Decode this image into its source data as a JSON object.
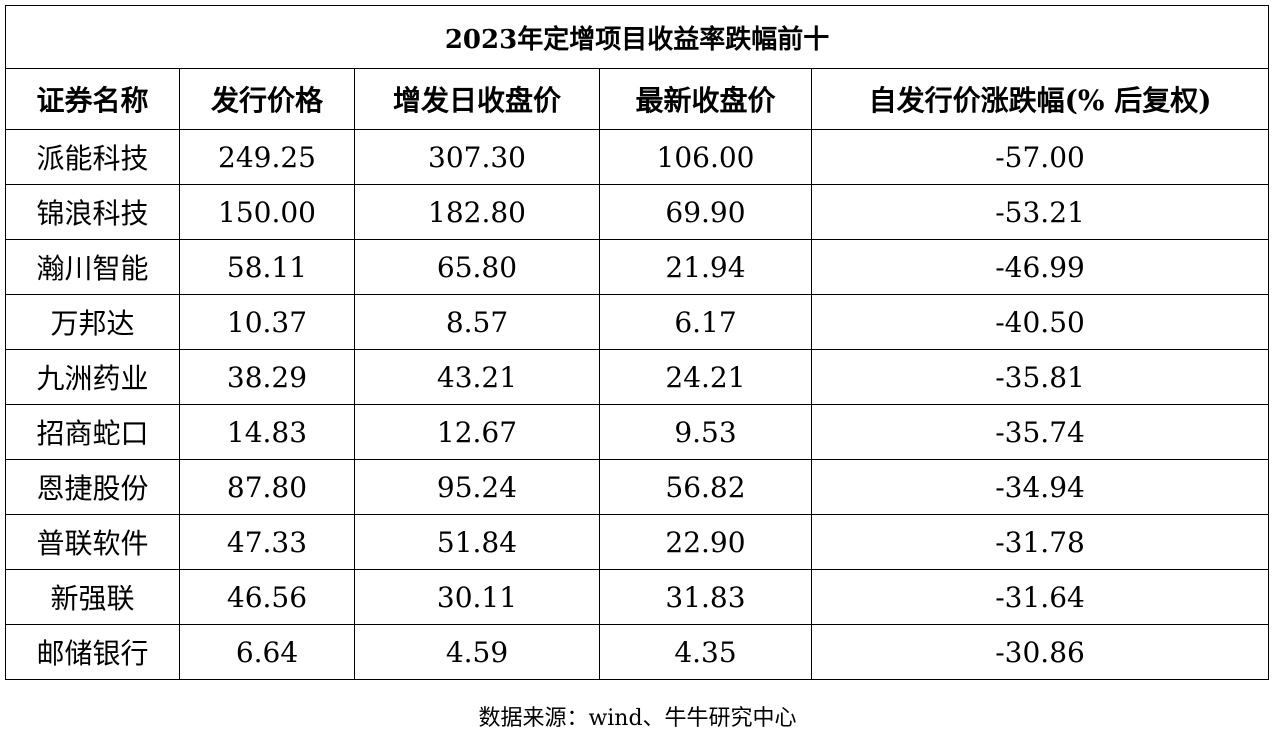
{
  "title": "2023年定增项目收益率跌幅前十",
  "headers": [
    "证券名称",
    "发行价格",
    "增发日收盘价",
    "最新收盘价",
    "自发行价涨跌幅(% 后复权)"
  ],
  "rows": [
    [
      "派能科技",
      "249.25",
      "307.30",
      "106.00",
      "-57.00"
    ],
    [
      "锦浪科技",
      "150.00",
      "182.80",
      "69.90",
      "-53.21"
    ],
    [
      "瀚川智能",
      "58.11",
      "65.80",
      "21.94",
      "-46.99"
    ],
    [
      "万邦达",
      "10.37",
      "8.57",
      "6.17",
      "-40.50"
    ],
    [
      "九洲药业",
      "38.29",
      "43.21",
      "24.21",
      "-35.81"
    ],
    [
      "招商蛇口",
      "14.83",
      "12.67",
      "9.53",
      "-35.74"
    ],
    [
      "恩捷股份",
      "87.80",
      "95.24",
      "56.82",
      "-34.94"
    ],
    [
      "普联软件",
      "47.33",
      "51.84",
      "22.90",
      "-31.78"
    ],
    [
      "新强联",
      "46.56",
      "30.11",
      "31.83",
      "-31.64"
    ],
    [
      "邮储银行",
      "6.64",
      "4.59",
      "4.35",
      "-30.86"
    ]
  ],
  "source": "数据来源：wind、牛牛研究中心"
}
